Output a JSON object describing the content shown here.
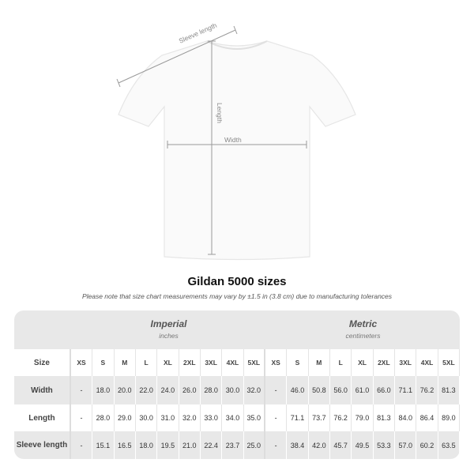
{
  "diagram": {
    "sleeve_label": "Sleeve length",
    "length_label": "Length",
    "width_label": "Width"
  },
  "title": "Gildan 5000 sizes",
  "note": "Please note that size chart measurements may vary by ±1.5 in (3.8 cm) due to manufacturing tolerances",
  "table": {
    "imperial": {
      "unit": "Imperial",
      "sub": "inches"
    },
    "metric": {
      "unit": "Metric",
      "sub": "centimeters"
    },
    "size_label": "Size",
    "sizes": [
      "XS",
      "S",
      "M",
      "L",
      "XL",
      "2XL",
      "3XL",
      "4XL",
      "5XL"
    ],
    "rows": [
      {
        "label": "Width",
        "imperial": [
          "-",
          "18.0",
          "20.0",
          "22.0",
          "24.0",
          "26.0",
          "28.0",
          "30.0",
          "32.0"
        ],
        "metric": [
          "-",
          "46.0",
          "50.8",
          "56.0",
          "61.0",
          "66.0",
          "71.1",
          "76.2",
          "81.3"
        ]
      },
      {
        "label": "Length",
        "imperial": [
          "-",
          "28.0",
          "29.0",
          "30.0",
          "31.0",
          "32.0",
          "33.0",
          "34.0",
          "35.0"
        ],
        "metric": [
          "-",
          "71.1",
          "73.7",
          "76.2",
          "79.0",
          "81.3",
          "84.0",
          "86.4",
          "89.0"
        ]
      },
      {
        "label": "Sleeve length",
        "imperial": [
          "-",
          "15.1",
          "16.5",
          "18.0",
          "19.5",
          "21.0",
          "22.4",
          "23.7",
          "25.0"
        ],
        "metric": [
          "-",
          "38.4",
          "42.0",
          "45.7",
          "49.5",
          "53.3",
          "57.0",
          "60.2",
          "63.5"
        ]
      }
    ]
  }
}
